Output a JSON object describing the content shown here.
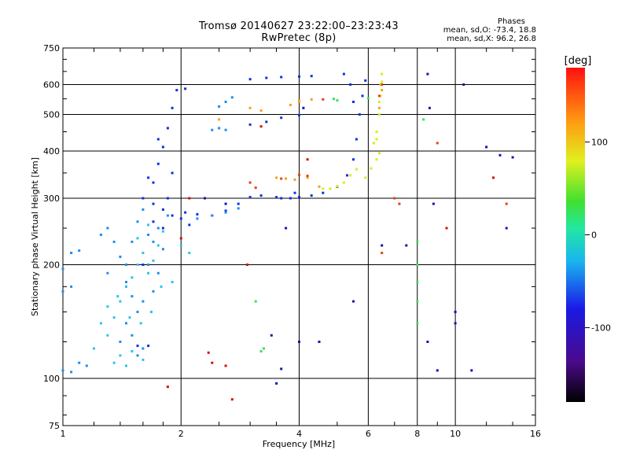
{
  "chart_data": {
    "type": "scatter",
    "title": "Tromsø 20140627 23:22:00–23:23:43",
    "subtitle": "RwPretec (8p)",
    "xlabel": "Frequency [MHz]",
    "ylabel": "Stationary phase Virtual Height [km]",
    "xscale": "log",
    "yscale": "log",
    "xlim": [
      1,
      16
    ],
    "ylim": [
      75,
      750
    ],
    "x_ticks": [
      1,
      2,
      4,
      6,
      8,
      10,
      16
    ],
    "x_tick_labels": [
      "1",
      "2",
      "4",
      "6",
      "8",
      "10",
      "16"
    ],
    "y_ticks": [
      75,
      100,
      200,
      300,
      400,
      500,
      600,
      750
    ],
    "y_tick_labels": [
      "75",
      "100",
      "200",
      "300",
      "400",
      "500",
      "600",
      "750"
    ],
    "grid": true,
    "stats": {
      "heading": "Phases",
      "line_o": "mean, sd,O: -73.4, 18.8",
      "line_x": "mean, sd,X:  96.2, 26.8"
    },
    "colorbar": {
      "label": "[deg]",
      "range": [
        -180,
        180
      ],
      "ticks": [
        100,
        0,
        -100
      ],
      "tick_labels": [
        "100",
        "0",
        "-100"
      ],
      "colormap": "rainbow (black-purple-blue-cyan-green-yellow-red)"
    },
    "series": [
      {
        "phase": -100,
        "color": "#0b30e6",
        "points": [
          [
            2.05,
            275
          ],
          [
            2.2,
            272
          ],
          [
            2.4,
            270
          ],
          [
            2.6,
            278
          ],
          [
            2.8,
            290
          ],
          [
            3.0,
            302
          ],
          [
            3.2,
            305
          ],
          [
            3.5,
            302
          ],
          [
            3.8,
            300
          ],
          [
            4.0,
            302
          ],
          [
            4.3,
            305
          ],
          [
            4.6,
            310
          ],
          [
            5.0,
            322
          ],
          [
            5.3,
            345
          ],
          [
            5.5,
            380
          ],
          [
            5.6,
            430
          ],
          [
            5.7,
            500
          ],
          [
            5.8,
            560
          ],
          [
            5.9,
            615
          ],
          [
            3.0,
            620
          ],
          [
            3.3,
            625
          ],
          [
            3.6,
            628
          ],
          [
            4.0,
            630
          ],
          [
            4.3,
            632
          ],
          [
            3.0,
            470
          ],
          [
            3.3,
            478
          ],
          [
            3.6,
            490
          ],
          [
            4.0,
            498
          ],
          [
            5.2,
            640
          ],
          [
            5.4,
            600
          ],
          [
            5.5,
            540
          ],
          [
            1.7,
            330
          ],
          [
            1.75,
            370
          ],
          [
            1.8,
            410
          ],
          [
            1.85,
            460
          ],
          [
            1.9,
            520
          ],
          [
            1.95,
            580
          ],
          [
            1.6,
            300
          ],
          [
            1.7,
            290
          ],
          [
            1.8,
            280
          ],
          [
            1.9,
            270
          ],
          [
            2.0,
            265
          ],
          [
            1.9,
            350
          ],
          [
            1.8,
            250
          ],
          [
            1.85,
            300
          ],
          [
            2.1,
            255
          ],
          [
            1.7,
            260
          ],
          [
            1.6,
            200
          ],
          [
            1.65,
            340
          ],
          [
            1.75,
            430
          ],
          [
            1.55,
            122
          ],
          [
            1.65,
            122
          ],
          [
            2.05,
            585
          ],
          [
            3.6,
            300
          ],
          [
            3.9,
            310
          ]
        ]
      },
      {
        "phase": -75,
        "color": "#1f8cf0",
        "points": [
          [
            1.0,
            195
          ],
          [
            1.05,
            215
          ],
          [
            1.1,
            218
          ],
          [
            1.0,
            105
          ],
          [
            1.05,
            104
          ],
          [
            1.1,
            110
          ],
          [
            1.15,
            108
          ],
          [
            1.3,
            190
          ],
          [
            1.4,
            210
          ],
          [
            1.45,
            180
          ],
          [
            1.5,
            165
          ],
          [
            1.55,
            150
          ],
          [
            1.6,
            160
          ],
          [
            1.65,
            200
          ],
          [
            1.7,
            230
          ],
          [
            1.75,
            250
          ],
          [
            1.8,
            220
          ],
          [
            1.85,
            270
          ],
          [
            1.5,
            230
          ],
          [
            1.55,
            260
          ],
          [
            1.6,
            280
          ],
          [
            1.45,
            140
          ],
          [
            1.4,
            125
          ],
          [
            1.5,
            130
          ],
          [
            1.55,
            115
          ],
          [
            1.6,
            120
          ],
          [
            1.7,
            170
          ],
          [
            1.75,
            190
          ],
          [
            2.4,
            270
          ],
          [
            2.6,
            275
          ],
          [
            2.8,
            282
          ],
          [
            2.2,
            265
          ],
          [
            2.5,
            525
          ],
          [
            2.6,
            540
          ],
          [
            2.7,
            555
          ],
          [
            2.4,
            455
          ],
          [
            2.5,
            460
          ],
          [
            2.6,
            455
          ],
          [
            1.3,
            250
          ],
          [
            1.25,
            240
          ],
          [
            1.35,
            230
          ],
          [
            1.45,
            200
          ],
          [
            1.65,
            240
          ],
          [
            1.0,
            170
          ],
          [
            1.05,
            175
          ]
        ]
      },
      {
        "phase": -45,
        "color": "#2cc4e6",
        "points": [
          [
            1.3,
            130
          ],
          [
            1.35,
            145
          ],
          [
            1.4,
            160
          ],
          [
            1.45,
            175
          ],
          [
            1.5,
            185
          ],
          [
            1.55,
            200
          ],
          [
            1.6,
            215
          ],
          [
            1.65,
            190
          ],
          [
            1.7,
            205
          ],
          [
            1.75,
            225
          ],
          [
            1.8,
            245
          ],
          [
            1.4,
            115
          ],
          [
            1.5,
            118
          ],
          [
            1.6,
            112
          ],
          [
            1.35,
            110
          ],
          [
            1.45,
            108
          ],
          [
            1.2,
            120
          ],
          [
            2.0,
            225
          ],
          [
            2.1,
            215
          ],
          [
            1.55,
            235
          ],
          [
            1.65,
            255
          ],
          [
            1.25,
            140
          ],
          [
            1.3,
            155
          ],
          [
            1.38,
            165
          ],
          [
            1.48,
            145
          ],
          [
            1.58,
            140
          ],
          [
            1.68,
            150
          ],
          [
            1.78,
            175
          ],
          [
            1.9,
            180
          ]
        ]
      },
      {
        "phase": 5,
        "color": "#3ce05a",
        "points": [
          [
            4.9,
            550
          ],
          [
            5.0,
            545
          ],
          [
            6.0,
            552
          ],
          [
            8.0,
            200
          ],
          [
            8.0,
            180
          ],
          [
            8.0,
            160
          ],
          [
            8.0,
            140
          ],
          [
            8.0,
            230
          ],
          [
            3.2,
            118
          ],
          [
            3.25,
            120
          ],
          [
            8.3,
            485
          ],
          [
            3.1,
            160
          ]
        ]
      },
      {
        "phase": 75,
        "color": "#d8ee16",
        "points": [
          [
            4.6,
            318
          ],
          [
            4.8,
            318
          ],
          [
            5.0,
            323
          ],
          [
            5.2,
            330
          ],
          [
            5.4,
            345
          ],
          [
            5.6,
            358
          ],
          [
            6.2,
            420
          ],
          [
            6.3,
            450
          ],
          [
            6.4,
            500
          ],
          [
            6.45,
            560
          ],
          [
            6.5,
            610
          ],
          [
            6.3,
            380
          ],
          [
            6.4,
            395
          ],
          [
            5.9,
            340
          ],
          [
            6.1,
            360
          ],
          [
            6.3,
            430
          ],
          [
            6.4,
            540
          ],
          [
            6.45,
            600
          ],
          [
            6.5,
            640
          ]
        ]
      },
      {
        "phase": 115,
        "color": "#f5a21a",
        "points": [
          [
            3.5,
            340
          ],
          [
            3.7,
            338
          ],
          [
            3.9,
            336
          ],
          [
            4.2,
            340
          ],
          [
            4.5,
            322
          ],
          [
            3.8,
            530
          ],
          [
            4.0,
            545
          ],
          [
            4.3,
            548
          ],
          [
            6.4,
            520
          ],
          [
            6.5,
            580
          ],
          [
            4.0,
            540
          ],
          [
            2.5,
            485
          ],
          [
            3.0,
            520
          ],
          [
            3.2,
            512
          ]
        ]
      },
      {
        "phase": 145,
        "color": "#e8420c",
        "points": [
          [
            3.6,
            338
          ],
          [
            4.0,
            346
          ],
          [
            4.2,
            344
          ],
          [
            4.6,
            548
          ],
          [
            6.4,
            560
          ],
          [
            6.5,
            600
          ],
          [
            7.2,
            290
          ],
          [
            7.0,
            300
          ],
          [
            9.0,
            420
          ],
          [
            13.5,
            290
          ],
          [
            6.5,
            215
          ],
          [
            3.0,
            330
          ],
          [
            3.1,
            320
          ]
        ]
      },
      {
        "phase": 170,
        "color": "#d01010",
        "points": [
          [
            2.35,
            117
          ],
          [
            2.4,
            110
          ],
          [
            1.85,
            95
          ],
          [
            2.7,
            88
          ],
          [
            2.1,
            300
          ],
          [
            2.0,
            235
          ],
          [
            3.2,
            465
          ],
          [
            4.2,
            380
          ],
          [
            9.5,
            250
          ],
          [
            2.6,
            108
          ],
          [
            2.95,
            200
          ],
          [
            12.5,
            340
          ]
        ]
      },
      {
        "phase": -130,
        "color": "#1018a8",
        "points": [
          [
            2.3,
            300
          ],
          [
            2.6,
            290
          ],
          [
            3.5,
            97
          ],
          [
            3.6,
            106
          ],
          [
            4.0,
            125
          ],
          [
            4.5,
            125
          ],
          [
            5.5,
            160
          ],
          [
            6.5,
            225
          ],
          [
            7.5,
            225
          ],
          [
            8.5,
            640
          ],
          [
            8.6,
            520
          ],
          [
            10.5,
            600
          ],
          [
            12.0,
            410
          ],
          [
            14.0,
            385
          ],
          [
            3.4,
            130
          ],
          [
            4.1,
            520
          ],
          [
            8.8,
            290
          ],
          [
            10.0,
            150
          ],
          [
            9.0,
            105
          ],
          [
            10.0,
            140
          ],
          [
            13.0,
            390
          ],
          [
            11.0,
            105
          ],
          [
            13.5,
            250
          ],
          [
            8.5,
            125
          ],
          [
            3.7,
            250
          ]
        ]
      }
    ]
  }
}
